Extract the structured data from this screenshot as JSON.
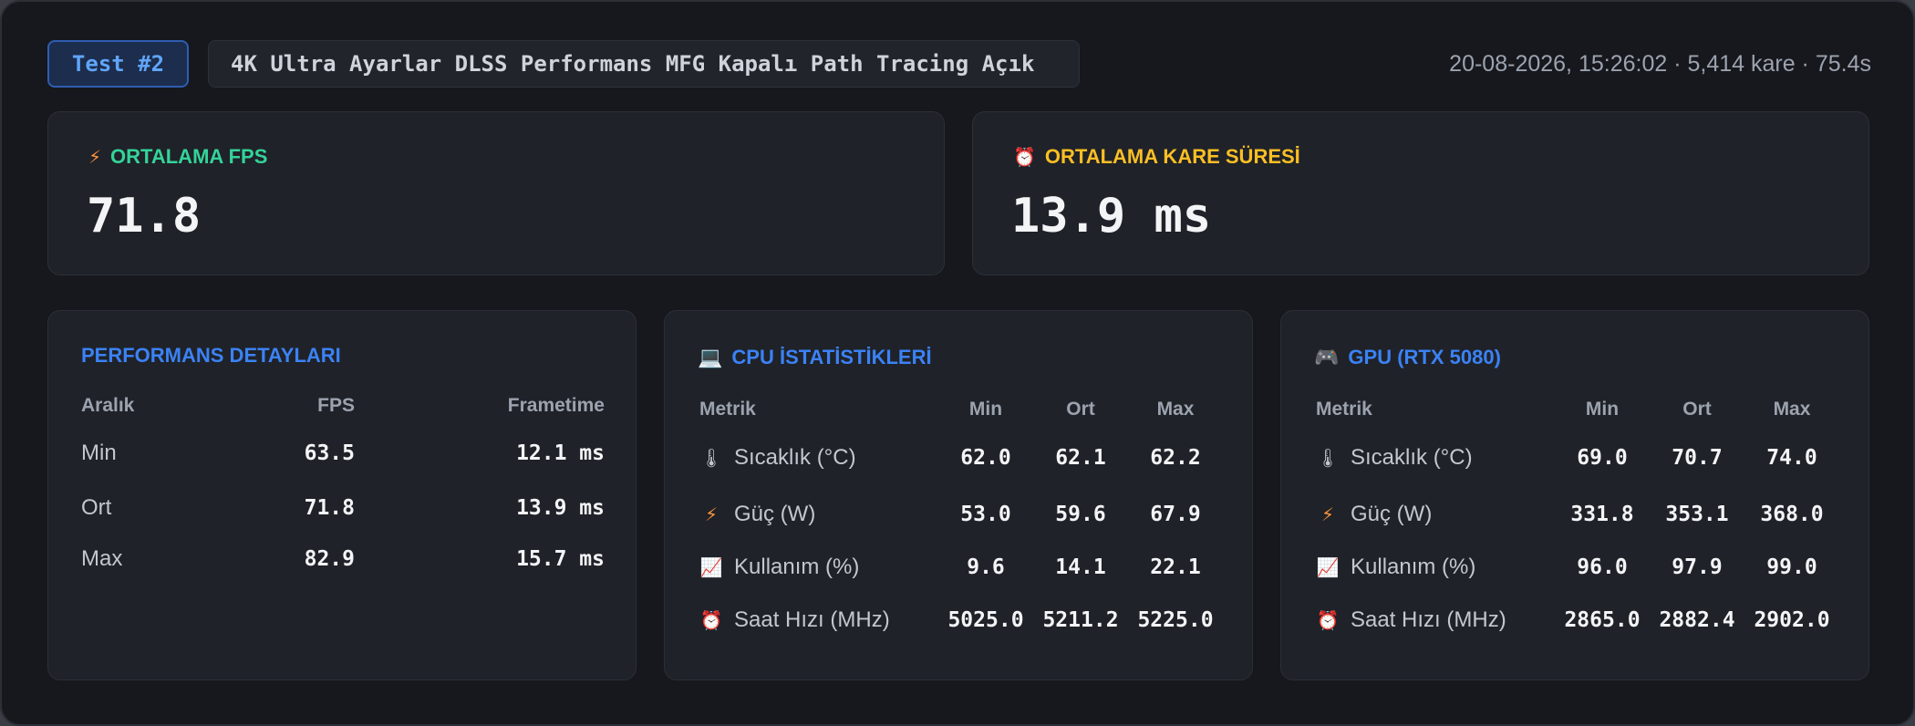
{
  "header": {
    "test_badge": "Test #2",
    "settings": "4K Ultra Ayarlar DLSS Performans MFG Kapalı Path Tracing Açık",
    "meta": "20-08-2026, 15:26:02 · 5,414 kare · 75.4s"
  },
  "summary": {
    "fps": {
      "label": "ORTALAMA FPS",
      "value": "71.8",
      "color": "#34d399",
      "icon": "lightning-icon",
      "glyph": "⚡"
    },
    "frametime": {
      "label": "ORTALAMA KARE SÜRESİ",
      "value": "13.9 ms",
      "color": "#fbbf24",
      "icon": "alarm-clock-icon",
      "glyph": "⏰"
    }
  },
  "performance": {
    "title": "PERFORMANS DETAYLARI",
    "headers": [
      "Aralık",
      "FPS",
      "Frametime"
    ],
    "rows": [
      {
        "range": "Min",
        "fps": "63.5",
        "frametime": "12.1 ms"
      },
      {
        "range": "Ort",
        "fps": "71.8",
        "frametime": "13.9 ms"
      },
      {
        "range": "Max",
        "fps": "82.9",
        "frametime": "15.7 ms"
      }
    ]
  },
  "cpu": {
    "title": "CPU İSTATİSTİKLERİ",
    "icon": "laptop-icon",
    "glyph": "💻",
    "headers": [
      "Metrik",
      "Min",
      "Ort",
      "Max"
    ],
    "rows": [
      {
        "icon": "thermometer-icon",
        "glyph": "🌡",
        "name": "Sıcaklık (°C)",
        "min": "62.0",
        "avg": "62.1",
        "max": "62.2"
      },
      {
        "icon": "lightning-icon",
        "glyph": "⚡",
        "name": "Güç (W)",
        "min": "53.0",
        "avg": "59.6",
        "max": "67.9"
      },
      {
        "icon": "chart-increasing-icon",
        "glyph": "📈",
        "name": "Kullanım (%)",
        "min": "9.6",
        "avg": "14.1",
        "max": "22.1"
      },
      {
        "icon": "alarm-clock-icon",
        "glyph": "⏰",
        "name": "Saat Hızı (MHz)",
        "min": "5025.0",
        "avg": "5211.2",
        "max": "5225.0"
      }
    ]
  },
  "gpu": {
    "title": "GPU (RTX 5080)",
    "icon": "gamepad-icon",
    "glyph": "🎮",
    "headers": [
      "Metrik",
      "Min",
      "Ort",
      "Max"
    ],
    "rows": [
      {
        "icon": "thermometer-icon",
        "glyph": "🌡",
        "name": "Sıcaklık (°C)",
        "min": "69.0",
        "avg": "70.7",
        "max": "74.0"
      },
      {
        "icon": "lightning-icon",
        "glyph": "⚡",
        "name": "Güç (W)",
        "min": "331.8",
        "avg": "353.1",
        "max": "368.0"
      },
      {
        "icon": "chart-increasing-icon",
        "glyph": "📈",
        "name": "Kullanım (%)",
        "min": "96.0",
        "avg": "97.9",
        "max": "99.0"
      },
      {
        "icon": "alarm-clock-icon",
        "glyph": "⏰",
        "name": "Saat Hızı (MHz)",
        "min": "2865.0",
        "avg": "2882.4",
        "max": "2902.0"
      }
    ]
  }
}
